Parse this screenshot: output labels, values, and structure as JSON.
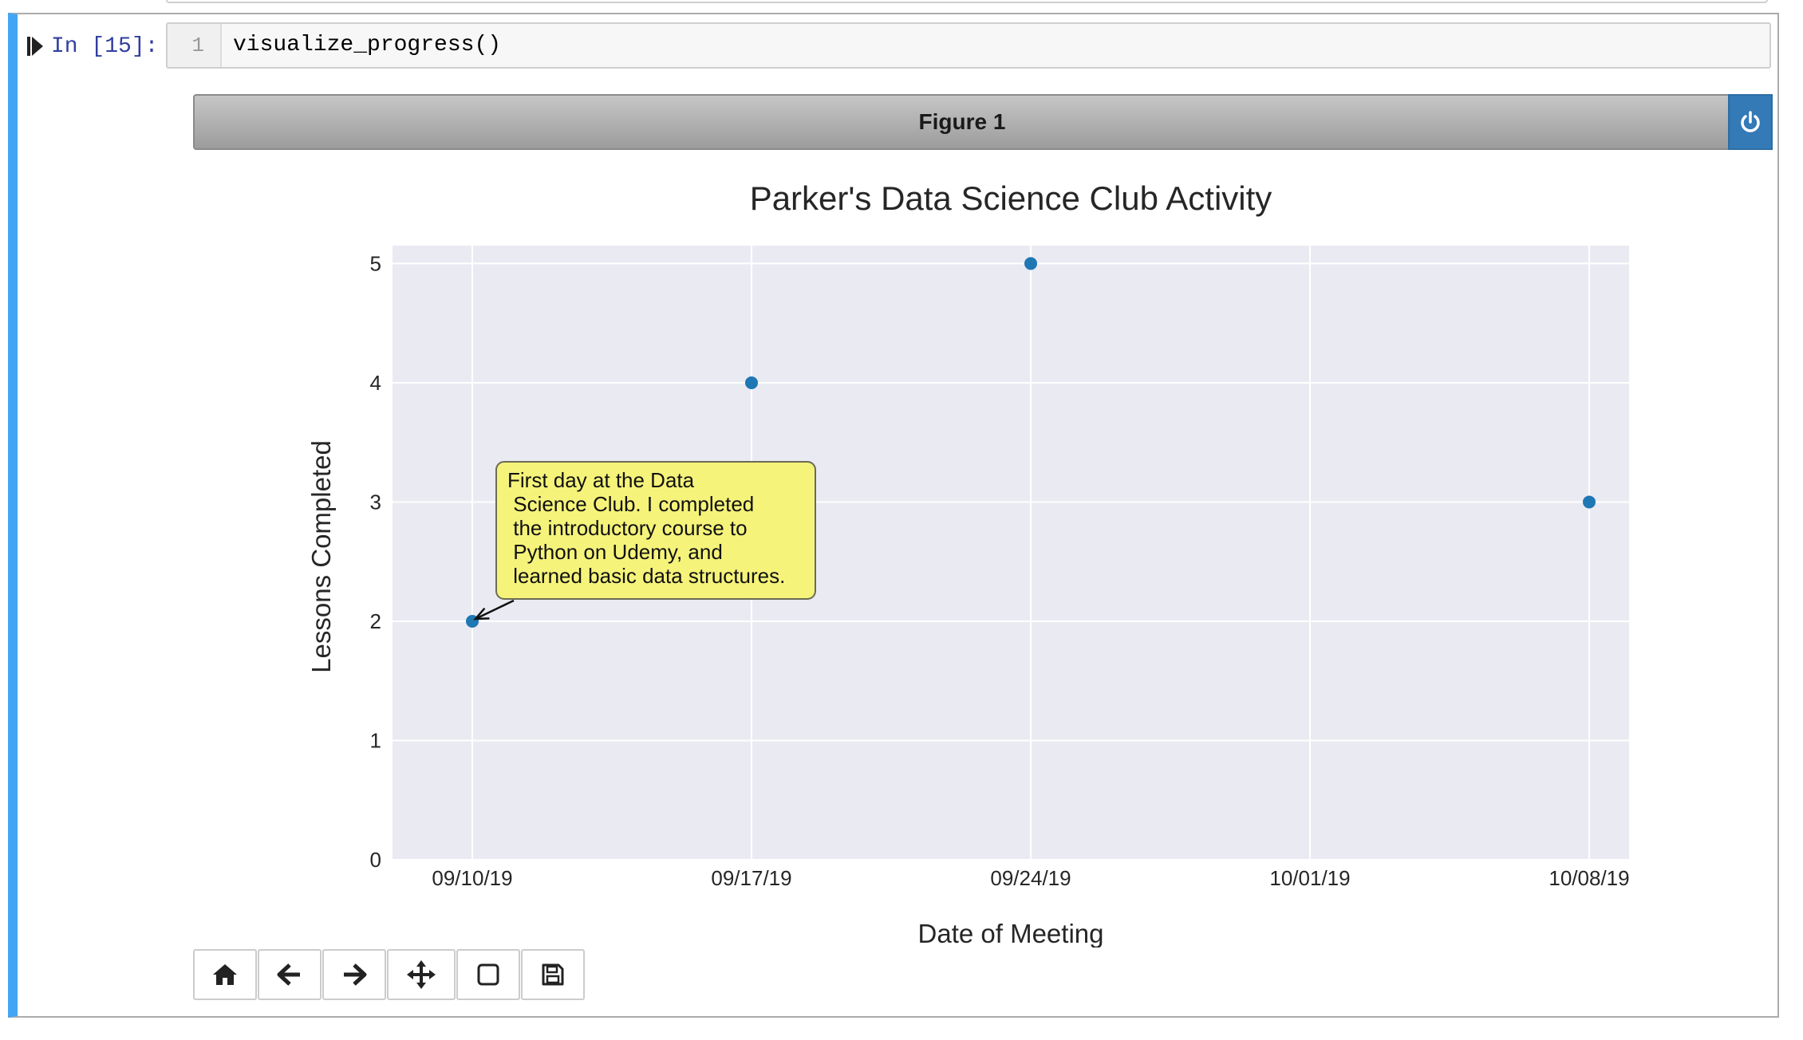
{
  "cell": {
    "prompt": "In [15]:",
    "line_number": "1",
    "code": "visualize_progress()"
  },
  "figure": {
    "title": "Figure 1"
  },
  "toolbar": {
    "items": [
      "home-icon",
      "back-arrow-icon",
      "forward-arrow-icon",
      "pan-icon",
      "zoom-rect-icon",
      "save-icon"
    ]
  },
  "colors": {
    "accent_bar": "#42a5f5",
    "close_button": "#337ab7",
    "point": "#1f77b4",
    "plot_bg": "#eaeaf2",
    "annotation_bg": "#f5f37a"
  },
  "chart_data": {
    "type": "scatter",
    "title": "Parker's Data Science Club Activity",
    "xlabel": "Date of Meeting",
    "ylabel": "Lessons Completed",
    "x_ticks": [
      "09/10/19",
      "09/17/19",
      "09/24/19",
      "10/01/19",
      "10/08/19"
    ],
    "y_ticks": [
      "0",
      "1",
      "2",
      "3",
      "4",
      "5"
    ],
    "ylim": [
      0,
      5.15
    ],
    "xlim": [
      "09/08/19",
      "10/09/19"
    ],
    "grid": true,
    "points": [
      {
        "x": "09/10/19",
        "y": 2
      },
      {
        "x": "09/17/19",
        "y": 4
      },
      {
        "x": "09/24/19",
        "y": 5
      },
      {
        "x": "10/08/19",
        "y": 3
      }
    ],
    "annotation": {
      "target": {
        "x": "09/10/19",
        "y": 2
      },
      "lines": [
        "First day at the Data",
        " Science Club. I completed",
        " the introductory course to",
        " Python on Udemy, and",
        " learned basic data structures."
      ]
    }
  }
}
